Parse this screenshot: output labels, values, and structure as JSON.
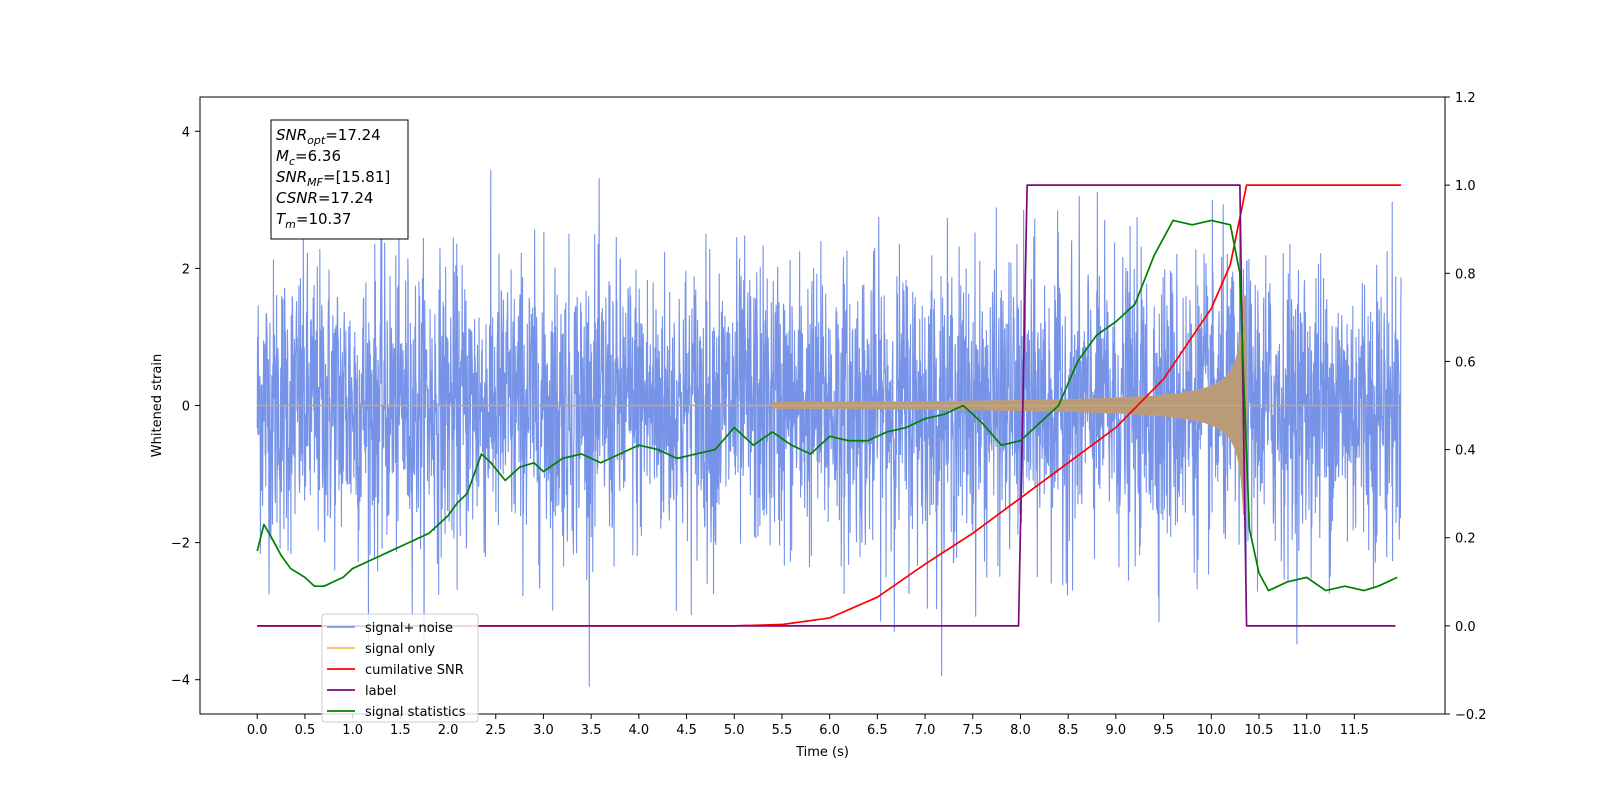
{
  "chart_data": {
    "type": "line",
    "title": "",
    "xlabel": "Time (s)",
    "ylabel": "Whitened strain",
    "y2label": "",
    "xlim": [
      -0.6,
      12.45
    ],
    "ylim": [
      -4.5,
      4.5
    ],
    "y2lim": [
      -0.2,
      1.2
    ],
    "xticks": [
      0.0,
      0.5,
      1.0,
      1.5,
      2.0,
      2.5,
      3.0,
      3.5,
      4.0,
      4.5,
      5.0,
      5.5,
      6.0,
      6.5,
      7.0,
      7.5,
      8.0,
      8.5,
      9.0,
      9.5,
      10.0,
      10.5,
      11.0,
      11.5
    ],
    "xtick_labels": [
      "0.0",
      "0.5",
      "1.0",
      "1.5",
      "2.0",
      "2.5",
      "3.0",
      "3.5",
      "4.0",
      "4.5",
      "5.0",
      "5.5",
      "6.0",
      "6.5",
      "7.0",
      "7.5",
      "8.0",
      "8.5",
      "9.0",
      "9.5",
      "10.0",
      "10.5",
      "11.0",
      "11.5"
    ],
    "yticks": [
      -4,
      -2,
      0,
      2,
      4
    ],
    "ytick_labels": [
      "−4",
      "−2",
      "0",
      "2",
      "4"
    ],
    "y2ticks": [
      -0.2,
      0.0,
      0.2,
      0.4,
      0.6,
      0.8,
      1.0,
      1.2
    ],
    "y2tick_labels": [
      "−0.2",
      "0.0",
      "0.2",
      "0.4",
      "0.6",
      "0.8",
      "1.0",
      "1.2"
    ],
    "grid": false,
    "legend_position": "lower-left",
    "colors": {
      "signal_noise": "#6a8ae6",
      "signal_only": "#f5b041",
      "cumulative_snr": "#ff0000",
      "label": "#7b0a7b",
      "signal_statistics": "#007f00"
    },
    "series": [
      {
        "name": "signal+ noise",
        "axis": "left",
        "color": "#6a8ae6",
        "description_values": {
          "x_start": 0.0,
          "x_end": 11.99,
          "y_min": -4.1,
          "y_max": 4.1
        }
      },
      {
        "name": "signal only",
        "axis": "left",
        "color": "#f5b041",
        "description_values": {
          "x_start": 0.0,
          "x_end": 11.99,
          "merger_time": 10.37,
          "peak_amplitude": 1.6
        }
      },
      {
        "name": "cumilative SNR",
        "axis": "right",
        "color": "#ff0000",
        "x": [
          0.0,
          5.0,
          5.5,
          6.0,
          6.5,
          7.0,
          7.5,
          8.0,
          8.5,
          9.0,
          9.5,
          10.0,
          10.2,
          10.37,
          11.99
        ],
        "y": [
          0.0,
          0.0,
          0.003,
          0.018,
          0.065,
          0.14,
          0.21,
          0.29,
          0.37,
          0.45,
          0.56,
          0.72,
          0.82,
          1.0,
          1.0
        ]
      },
      {
        "name": "label",
        "axis": "right",
        "color": "#7b0a7b",
        "x": [
          0.0,
          7.98,
          8.07,
          10.3,
          10.37,
          11.93
        ],
        "y": [
          0.0,
          0.0,
          1.0,
          1.0,
          0.0,
          0.0
        ]
      },
      {
        "name": "signal statistics",
        "axis": "right",
        "color": "#007f00",
        "x": [
          0.0,
          0.07,
          0.15,
          0.25,
          0.35,
          0.5,
          0.6,
          0.7,
          0.8,
          0.9,
          1.0,
          1.2,
          1.4,
          1.6,
          1.8,
          2.0,
          2.1,
          2.2,
          2.3,
          2.35,
          2.45,
          2.6,
          2.75,
          2.9,
          3.0,
          3.2,
          3.4,
          3.6,
          3.8,
          4.0,
          4.2,
          4.4,
          4.6,
          4.8,
          5.0,
          5.2,
          5.4,
          5.6,
          5.8,
          6.0,
          6.2,
          6.4,
          6.6,
          6.8,
          7.0,
          7.2,
          7.4,
          7.6,
          7.8,
          8.0,
          8.2,
          8.4,
          8.6,
          8.8,
          9.0,
          9.2,
          9.4,
          9.6,
          9.8,
          10.0,
          10.2,
          10.3,
          10.35,
          10.4,
          10.5,
          10.6,
          10.7,
          10.8,
          11.0,
          11.2,
          11.4,
          11.6,
          11.75,
          11.85,
          11.95
        ],
        "y": [
          0.17,
          0.23,
          0.2,
          0.16,
          0.13,
          0.11,
          0.09,
          0.09,
          0.1,
          0.11,
          0.13,
          0.15,
          0.17,
          0.19,
          0.21,
          0.25,
          0.28,
          0.3,
          0.36,
          0.39,
          0.37,
          0.33,
          0.36,
          0.37,
          0.35,
          0.38,
          0.39,
          0.37,
          0.39,
          0.41,
          0.4,
          0.38,
          0.39,
          0.4,
          0.45,
          0.41,
          0.44,
          0.41,
          0.39,
          0.43,
          0.42,
          0.42,
          0.44,
          0.45,
          0.47,
          0.48,
          0.5,
          0.46,
          0.41,
          0.42,
          0.46,
          0.5,
          0.6,
          0.66,
          0.69,
          0.73,
          0.84,
          0.92,
          0.91,
          0.92,
          0.91,
          0.8,
          0.5,
          0.22,
          0.12,
          0.08,
          0.09,
          0.1,
          0.11,
          0.08,
          0.09,
          0.08,
          0.09,
          0.1,
          0.11
        ]
      }
    ],
    "legend_entries": [
      "signal+ noise",
      "signal only",
      "cumilative SNR",
      "label",
      "signal statistics"
    ],
    "annotation_box": {
      "lines": [
        {
          "main": "SNR",
          "sub": "opt",
          "value": "=17.24"
        },
        {
          "main": "M",
          "sub": "c",
          "value": "=6.36"
        },
        {
          "main": "SNR",
          "sub": "MF",
          "value": "=[15.81]"
        },
        {
          "main": "CSNR",
          "sub": "",
          "value": "=17.24"
        },
        {
          "main": "T",
          "sub": "m",
          "value": "=10.37"
        }
      ]
    }
  }
}
